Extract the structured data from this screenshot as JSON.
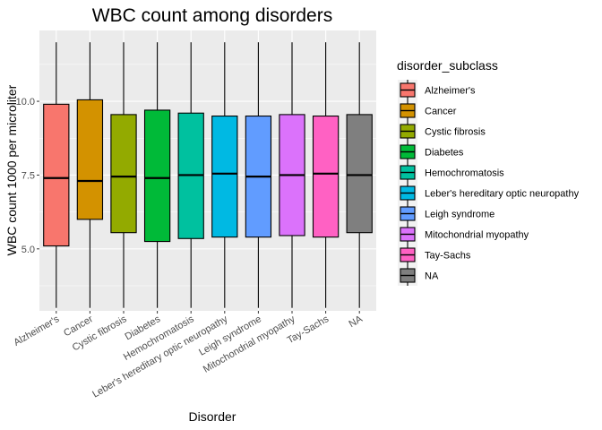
{
  "chart_data": {
    "type": "box",
    "title": "WBC count among disorders",
    "xlabel": "Disorder",
    "ylabel": "WBC count 1000 per microliter",
    "ylim": [
      2.9,
      12.4
    ],
    "yticks": [
      5.0,
      7.5,
      10.0
    ],
    "ytick_labels": [
      "5.0",
      "7.5",
      "10.0"
    ],
    "grid": true,
    "legend_title": "disorder_subclass",
    "legend_position": "right",
    "categories": [
      "Alzheimer's",
      "Cancer",
      "Cystic fibrosis",
      "Diabetes",
      "Hemochromatosis",
      "Leber's hereditary optic neuropathy",
      "Leigh syndrome",
      "Mitochondrial myopathy",
      "Tay-Sachs",
      "NA"
    ],
    "colors": [
      "#F8766D",
      "#D39200",
      "#93AA00",
      "#00BA38",
      "#00C19F",
      "#00B9E3",
      "#619CFF",
      "#DB72FB",
      "#FF61C3",
      "#7F7F7F"
    ],
    "series": [
      {
        "category": "Alzheimer's",
        "min": 3.0,
        "q1": 5.1,
        "median": 7.4,
        "q3": 9.9,
        "max": 12.0
      },
      {
        "category": "Cancer",
        "min": 3.0,
        "q1": 6.0,
        "median": 7.3,
        "q3": 10.05,
        "max": 12.0
      },
      {
        "category": "Cystic fibrosis",
        "min": 3.0,
        "q1": 5.55,
        "median": 7.45,
        "q3": 9.55,
        "max": 12.0
      },
      {
        "category": "Diabetes",
        "min": 3.0,
        "q1": 5.25,
        "median": 7.4,
        "q3": 9.7,
        "max": 12.0
      },
      {
        "category": "Hemochromatosis",
        "min": 3.0,
        "q1": 5.35,
        "median": 7.5,
        "q3": 9.6,
        "max": 12.0
      },
      {
        "category": "Leber's hereditary optic neuropathy",
        "min": 3.0,
        "q1": 5.4,
        "median": 7.55,
        "q3": 9.5,
        "max": 12.0
      },
      {
        "category": "Leigh syndrome",
        "min": 3.0,
        "q1": 5.4,
        "median": 7.45,
        "q3": 9.5,
        "max": 12.0
      },
      {
        "category": "Mitochondrial myopathy",
        "min": 3.0,
        "q1": 5.45,
        "median": 7.5,
        "q3": 9.55,
        "max": 12.0
      },
      {
        "category": "Tay-Sachs",
        "min": 3.0,
        "q1": 5.4,
        "median": 7.55,
        "q3": 9.5,
        "max": 12.0
      },
      {
        "category": "NA",
        "min": 3.0,
        "q1": 5.55,
        "median": 7.5,
        "q3": 9.55,
        "max": 12.0
      }
    ]
  }
}
